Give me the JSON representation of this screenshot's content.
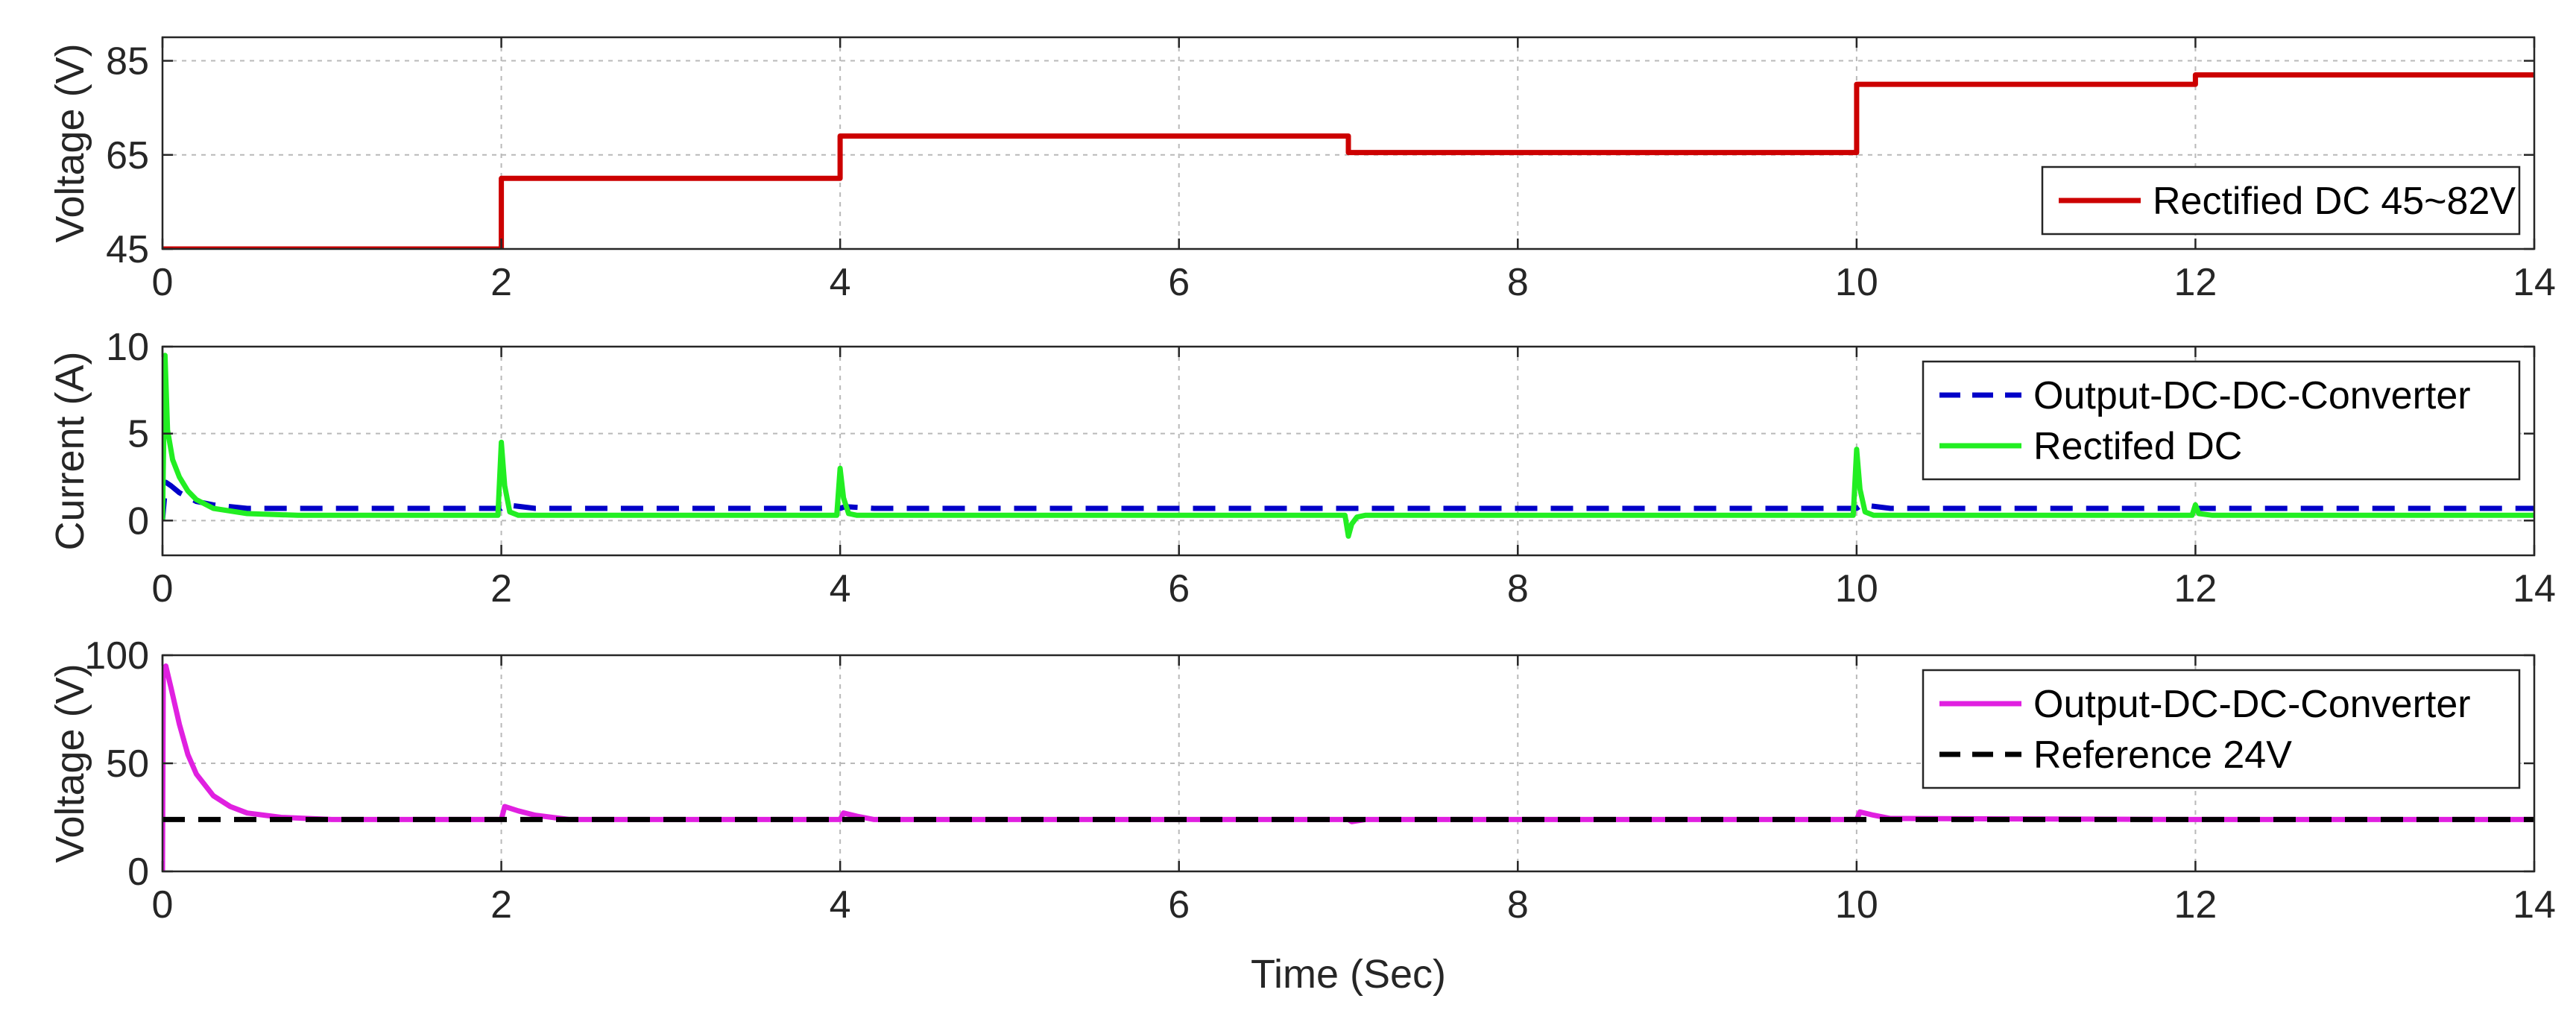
{
  "chart_data": [
    {
      "type": "line",
      "title": "",
      "xlabel": "",
      "ylabel": "Voltage (V)",
      "xlim": [
        0,
        14
      ],
      "ylim": [
        45,
        90
      ],
      "xticks": [
        0,
        2,
        4,
        6,
        8,
        10,
        12,
        14
      ],
      "yticks": [
        45,
        65,
        85
      ],
      "grid": true,
      "legend_position": "bottom-right",
      "series": [
        {
          "name": "Rectified DC 45~82V",
          "color": "#cc0000",
          "style": "solid",
          "x": [
            0,
            2,
            2,
            4,
            4,
            7,
            7,
            10,
            10,
            12,
            12,
            14
          ],
          "y": [
            45,
            45,
            60,
            60,
            69,
            69,
            65.5,
            65.5,
            80,
            80,
            82,
            82
          ]
        }
      ]
    },
    {
      "type": "line",
      "title": "",
      "xlabel": "",
      "ylabel": "Current (A)",
      "xlim": [
        0,
        14
      ],
      "ylim": [
        -2,
        10
      ],
      "xticks": [
        0,
        2,
        4,
        6,
        8,
        10,
        12,
        14
      ],
      "yticks": [
        0,
        5,
        10
      ],
      "grid": true,
      "legend_position": "top-right",
      "series": [
        {
          "name": "Output-DC-DC-Converter",
          "color": "#0000c8",
          "style": "dashed",
          "x": [
            0,
            0.02,
            0.05,
            0.1,
            0.2,
            0.3,
            0.5,
            1,
            2,
            2.03,
            2.2,
            4,
            4.03,
            4.2,
            7,
            10,
            10.03,
            10.2,
            14
          ],
          "y": [
            0,
            2.2,
            2.0,
            1.6,
            1.1,
            0.9,
            0.7,
            0.7,
            0.7,
            0.9,
            0.7,
            0.7,
            0.8,
            0.7,
            0.7,
            0.7,
            0.9,
            0.7,
            0.7
          ]
        },
        {
          "name": "Rectifed DC",
          "color": "#22ee22",
          "style": "solid",
          "x": [
            0,
            0.015,
            0.03,
            0.06,
            0.1,
            0.15,
            0.2,
            0.3,
            0.5,
            0.8,
            1,
            1.98,
            2.0,
            2.02,
            2.05,
            2.1,
            3.98,
            4.0,
            4.02,
            4.05,
            4.1,
            6.98,
            7.0,
            7.02,
            7.05,
            7.1,
            9.98,
            10.0,
            10.02,
            10.05,
            10.1,
            11.98,
            12.0,
            12.02,
            12.1,
            14
          ],
          "y": [
            0,
            9.5,
            5.2,
            3.5,
            2.5,
            1.7,
            1.2,
            0.7,
            0.4,
            0.3,
            0.3,
            0.3,
            4.5,
            2.0,
            0.5,
            0.3,
            0.3,
            3.0,
            1.3,
            0.4,
            0.3,
            0.3,
            -0.9,
            -0.2,
            0.2,
            0.3,
            0.3,
            4.1,
            1.8,
            0.5,
            0.3,
            0.3,
            0.9,
            0.4,
            0.3,
            0.3
          ]
        }
      ]
    },
    {
      "type": "line",
      "title": "",
      "xlabel": "Time (Sec)",
      "ylabel": "Voltage (V)",
      "xlim": [
        0,
        14
      ],
      "ylim": [
        0,
        100
      ],
      "xticks": [
        0,
        2,
        4,
        6,
        8,
        10,
        12,
        14
      ],
      "yticks": [
        0,
        50,
        100
      ],
      "grid": true,
      "legend_position": "top-right",
      "series": [
        {
          "name": "Output-DC-DC-Converter",
          "color": "#e020e0",
          "style": "solid",
          "x": [
            0,
            0.005,
            0.02,
            0.05,
            0.1,
            0.15,
            0.2,
            0.3,
            0.4,
            0.5,
            0.7,
            1,
            2,
            2.02,
            2.1,
            2.2,
            2.4,
            4,
            4.02,
            4.1,
            4.2,
            7,
            7.02,
            7.1,
            10,
            10.02,
            10.1,
            10.2,
            12,
            14
          ],
          "y": [
            0,
            93,
            95,
            85,
            68,
            54,
            45,
            35,
            30,
            27,
            25,
            24,
            24,
            30,
            28,
            26,
            24,
            24,
            27,
            25.5,
            24,
            24,
            23,
            24,
            24,
            27.5,
            26,
            24.5,
            24,
            24
          ]
        },
        {
          "name": "Reference 24V",
          "color": "#000000",
          "style": "dashed",
          "x": [
            0,
            14
          ],
          "y": [
            24,
            24
          ]
        }
      ]
    }
  ]
}
